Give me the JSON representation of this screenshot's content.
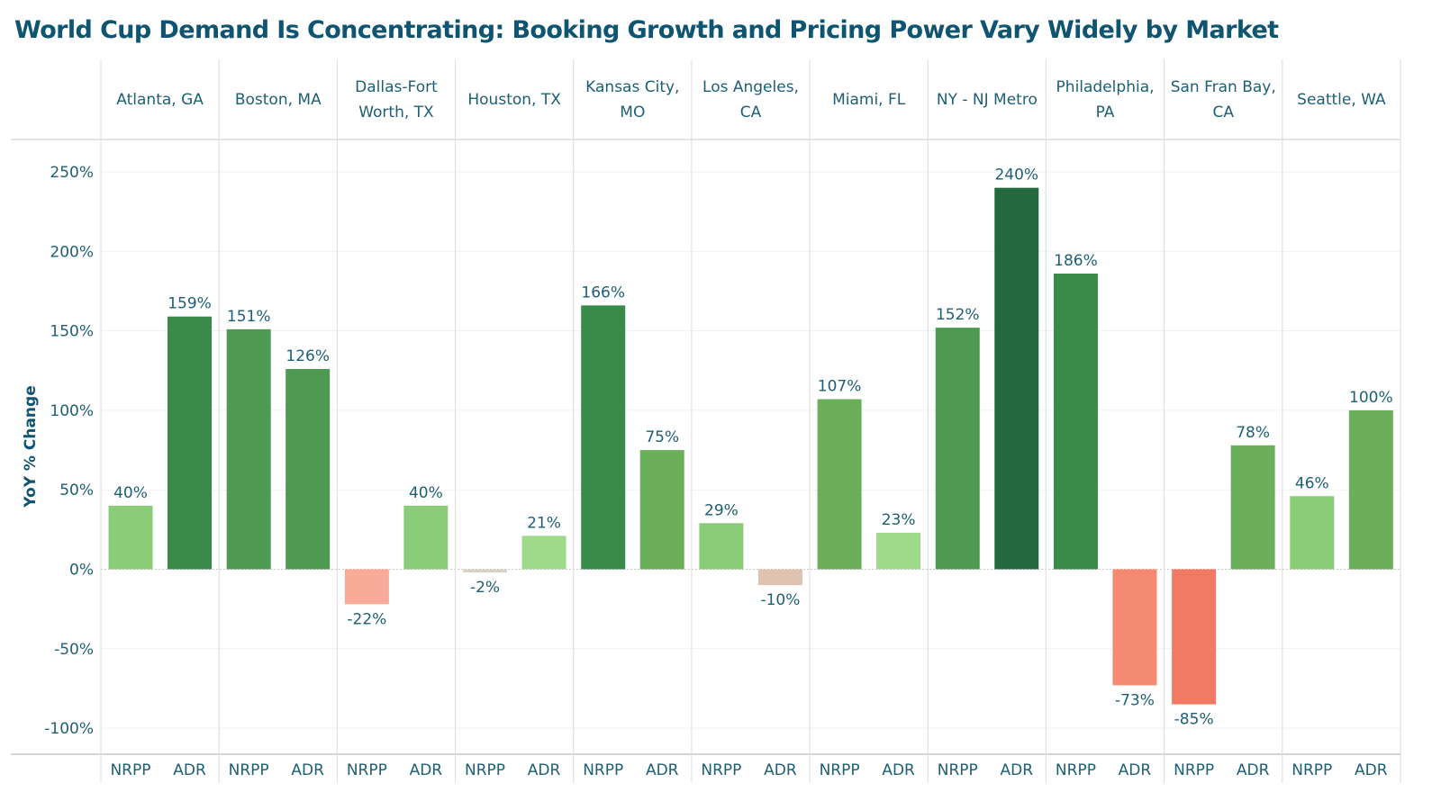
{
  "title": "World Cup Demand Is Concentrating: Booking Growth and Pricing Power Vary Widely by Market",
  "chart_data": {
    "type": "bar",
    "title": "World Cup Demand Is Concentrating: Booking Growth and Pricing Power Vary Widely by Market",
    "xlabel": "",
    "ylabel": "YoY % Change",
    "ylim": [
      -120,
      260
    ],
    "yticks": [
      250,
      200,
      150,
      100,
      50,
      0,
      -50,
      -100
    ],
    "ytick_labels": [
      "250%",
      "200%",
      "150%",
      "100%",
      "50%",
      "0%",
      "-50%",
      "-100%"
    ],
    "grid": true,
    "legend": "none",
    "markets": [
      {
        "name": "Atlanta, GA",
        "header_lines": [
          "Atlanta, GA"
        ]
      },
      {
        "name": "Boston, MA",
        "header_lines": [
          "Boston, MA"
        ]
      },
      {
        "name": "Dallas-Fort Worth, TX",
        "header_lines": [
          "Dallas-Fort",
          "Worth, TX"
        ]
      },
      {
        "name": "Houston, TX",
        "header_lines": [
          "Houston, TX"
        ]
      },
      {
        "name": "Kansas City, MO",
        "header_lines": [
          "Kansas City,",
          "MO"
        ]
      },
      {
        "name": "Los Angeles, CA",
        "header_lines": [
          "Los Angeles,",
          "CA"
        ]
      },
      {
        "name": "Miami, FL",
        "header_lines": [
          "Miami, FL"
        ]
      },
      {
        "name": "NY - NJ Metro",
        "header_lines": [
          "NY - NJ Metro"
        ]
      },
      {
        "name": "Philadelphia, PA",
        "header_lines": [
          "Philadelphia,",
          "PA"
        ]
      },
      {
        "name": "San Fran Bay, CA",
        "header_lines": [
          "San Fran Bay,",
          "CA"
        ]
      },
      {
        "name": "Seattle, WA",
        "header_lines": [
          "Seattle, WA"
        ]
      }
    ],
    "metrics": [
      "NRPP",
      "ADR"
    ],
    "series": [
      {
        "name": "NRPP",
        "values": [
          40,
          151,
          -22,
          -2,
          166,
          29,
          107,
          152,
          186,
          -85,
          46
        ]
      },
      {
        "name": "ADR",
        "values": [
          159,
          126,
          40,
          21,
          75,
          -10,
          23,
          240,
          -73,
          78,
          100
        ]
      }
    ],
    "value_labels": {
      "NRPP": [
        "40%",
        "151%",
        "-22%",
        "-2%",
        "166%",
        "29%",
        "107%",
        "152%",
        "186%",
        "-85%",
        "46%"
      ],
      "ADR": [
        "159%",
        "126%",
        "40%",
        "21%",
        "75%",
        "-10%",
        "23%",
        "240%",
        "-73%",
        "78%",
        "100%"
      ]
    },
    "colors": {
      "text": "#1d5f74",
      "title": "#0f5470",
      "positive_scale": [
        "#9ed98c",
        "#8bcc78",
        "#6caf5b",
        "#4f9a52",
        "#3a8a4a",
        "#236940"
      ],
      "negative_scale": [
        "#e0c2b0",
        "#f9aa98",
        "#f48a72",
        "#f07a64"
      ]
    }
  }
}
